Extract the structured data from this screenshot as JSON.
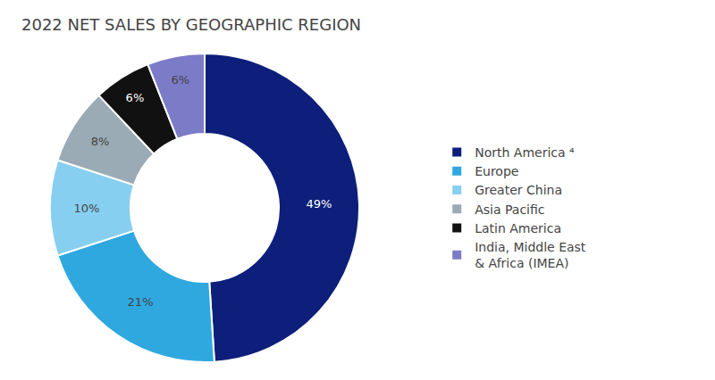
{
  "chart_data": {
    "type": "pie",
    "title": "2022 NET SALES BY GEOGRAPHIC REGION",
    "categories": [
      "North America ⁴",
      "Europe",
      "Greater China",
      "Asia Pacific",
      "Latin America",
      "India, Middle East\n& Africa (IMEA)"
    ],
    "values": [
      49,
      21,
      10,
      8,
      6,
      6
    ],
    "value_labels": [
      "49%",
      "21%",
      "10%",
      "8%",
      "6%",
      "6%"
    ],
    "colors": [
      "#0d1f7a",
      "#2fa8e0",
      "#87cff0",
      "#9aabb5",
      "#111111",
      "#7b7bc8"
    ],
    "data_labels": true,
    "legend": "right"
  }
}
